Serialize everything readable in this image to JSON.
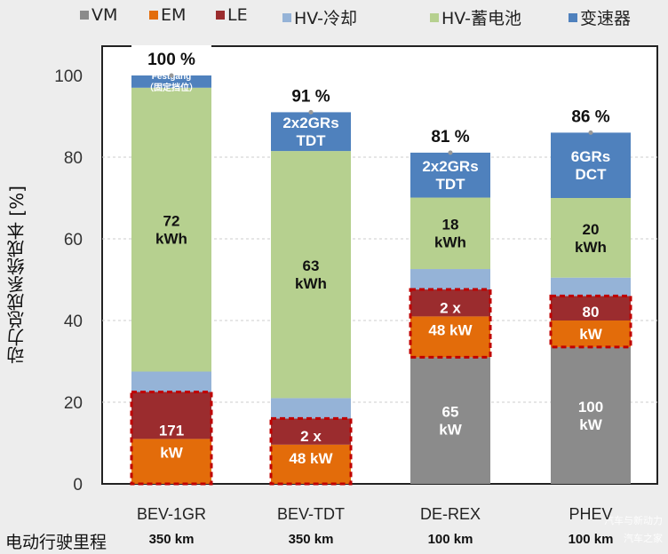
{
  "chart_data": {
    "type": "bar",
    "stacked": true,
    "ylabel": "动力总成系统成本   [%]",
    "ylim": [
      0,
      100
    ],
    "yticks": [
      0,
      20,
      40,
      60,
      80,
      100
    ],
    "grid": true,
    "legend_position": "top",
    "categories": [
      "BEV-1GR",
      "BEV-TDT",
      "DE-REX",
      "PHEV"
    ],
    "range_label": "电动行驶里程",
    "ranges": [
      "350 km",
      "350 km",
      "100 km",
      "100 km"
    ],
    "totals": [
      "100 %",
      "91 %",
      "81 %",
      "86 %"
    ],
    "series": [
      {
        "name": "VM",
        "color": "#8b8b8b",
        "values": [
          0,
          0,
          31,
          33.5
        ],
        "labels": [
          [
            "",
            ""
          ],
          [
            "",
            ""
          ],
          [
            "65",
            "kW"
          ],
          [
            "100",
            "kW"
          ]
        ]
      },
      {
        "name": "EM",
        "color": "#e36c0a",
        "values": [
          11,
          9.6,
          10,
          6.5
        ],
        "labels": [
          [
            "kW",
            ""
          ],
          [
            "48 kW",
            ""
          ],
          [
            "48 kW",
            ""
          ],
          [
            "kW",
            ""
          ]
        ]
      },
      {
        "name": "LE",
        "color": "#9b2c2e",
        "values": [
          11.5,
          6.4,
          6.6,
          6
        ],
        "labels": [
          [
            "171",
            ""
          ],
          [
            "2 x",
            ""
          ],
          [
            "2 x",
            ""
          ],
          [
            "80",
            ""
          ]
        ]
      },
      {
        "name": "HV-冷却",
        "color": "#95b3d7",
        "values": [
          5,
          5,
          5,
          4.5
        ],
        "labels": [
          [
            "",
            ""
          ],
          [
            "",
            ""
          ],
          [
            "",
            ""
          ],
          [
            "",
            ""
          ]
        ]
      },
      {
        "name": "HV-蓄电池",
        "color": "#b6d08f",
        "values": [
          69.5,
          60.5,
          17.5,
          19.5
        ],
        "labels": [
          [
            "72",
            "kWh"
          ],
          [
            "63",
            "kWh"
          ],
          [
            "18",
            "kWh"
          ],
          [
            "20",
            "kWh"
          ]
        ]
      },
      {
        "name": "变速器",
        "color": "#4f81bd",
        "values": [
          3,
          9.5,
          11,
          16
        ],
        "labels": [
          [
            "Festgang",
            "（固定挡位）"
          ],
          [
            "2x2GRs",
            "TDT"
          ],
          [
            "2x2GRs",
            "TDT"
          ],
          [
            "6GRs",
            "DCT"
          ]
        ]
      }
    ]
  },
  "watermark": [
    "汽车与新动力",
    "汽车之家"
  ]
}
